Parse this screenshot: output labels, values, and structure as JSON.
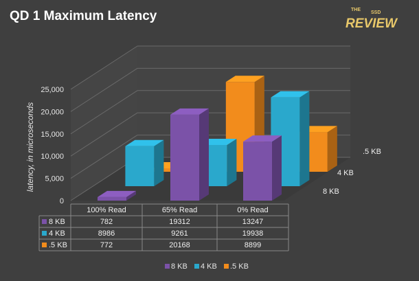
{
  "chart_data": {
    "type": "bar",
    "title": "QD  1 Maximum  Latency",
    "ylabel": "latency, in microseconds",
    "xlabel": "",
    "ylim": [
      0,
      25000
    ],
    "yticks": [
      0,
      5000,
      10000,
      15000,
      20000,
      25000
    ],
    "ytick_labels": [
      "0",
      "5,000",
      "10,000",
      "15,000",
      "20,000",
      "25,000"
    ],
    "categories": [
      "100% Read",
      "65% Read",
      "0% Read"
    ],
    "series": [
      {
        "name": "8 KB",
        "color": "#7b52a8",
        "values": [
          782,
          19312,
          13247
        ]
      },
      {
        "name": "4 KB",
        "color": "#2aa8cc",
        "values": [
          8986,
          9261,
          19938
        ]
      },
      {
        "name": ".5 KB",
        "color": "#f28c1c",
        "values": [
          772,
          20168,
          8899
        ]
      }
    ],
    "grid": true,
    "legend": "bottom",
    "data_table": true
  },
  "logo": {
    "top": "THE",
    "middle": "SSD",
    "bottom": "REVIEW"
  }
}
